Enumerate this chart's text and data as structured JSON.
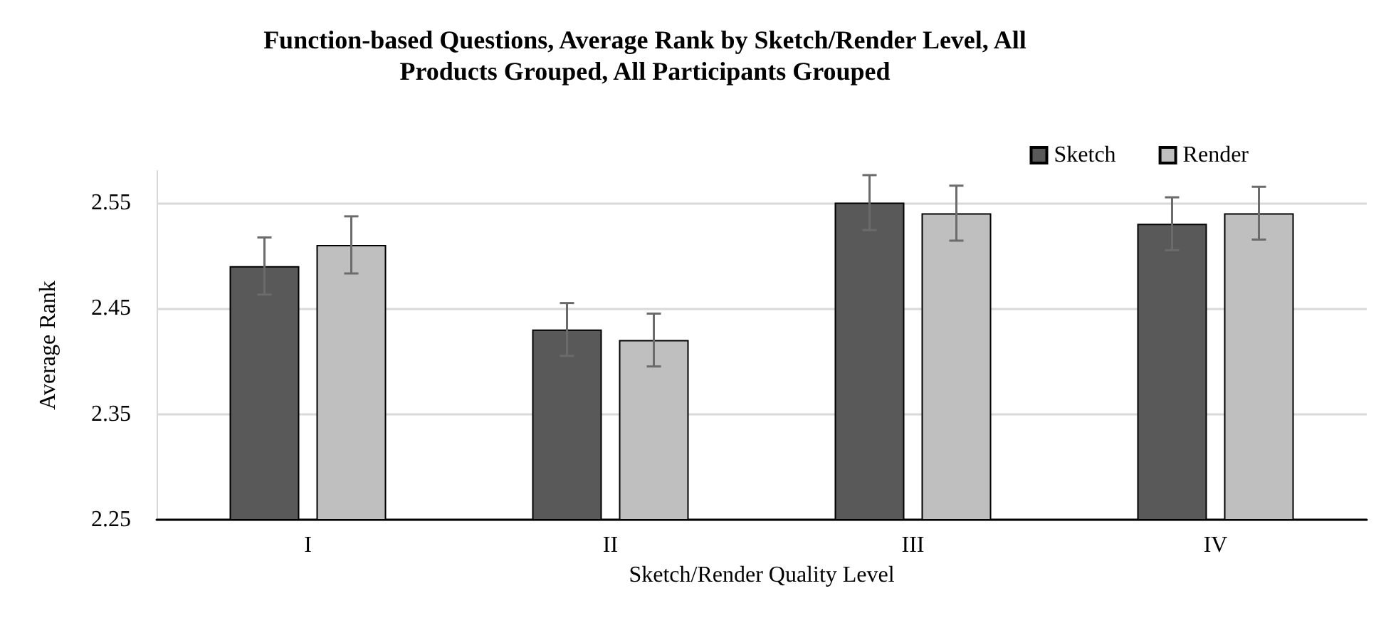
{
  "chart_data": {
    "type": "bar",
    "title": "Function-based Questions, Average Rank by Sketch/Render Level, All\nProducts Grouped, All Participants Grouped",
    "xlabel": "Sketch/Render Quality Level",
    "ylabel": "Average Rank",
    "categories": [
      "I",
      "II",
      "III",
      "IV"
    ],
    "series": [
      {
        "name": "Sketch",
        "color": "#595959",
        "values": [
          2.49,
          2.43,
          2.55,
          2.53
        ],
        "errors": [
          0.027,
          0.025,
          0.026,
          0.025
        ]
      },
      {
        "name": "Render",
        "color": "#bfbfbf",
        "values": [
          2.51,
          2.42,
          2.54,
          2.54
        ],
        "errors": [
          0.027,
          0.025,
          0.026,
          0.025
        ]
      }
    ],
    "ylim": [
      2.25,
      2.58
    ],
    "yticks": [
      2.25,
      2.35,
      2.45,
      2.55
    ],
    "grid": "y",
    "legend": "top right"
  }
}
